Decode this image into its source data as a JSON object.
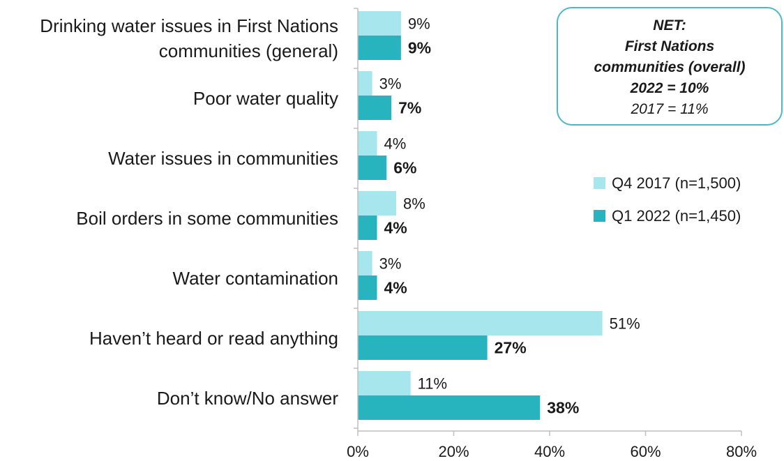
{
  "chart_data": {
    "type": "bar",
    "orientation": "horizontal",
    "categories": [
      "Drinking water issues in First Nations communities (general)",
      "Poor water quality",
      "Water issues in communities",
      "Boil orders in some communities",
      "Water contamination",
      "Haven’t heard or read anything",
      "Don’t know/No answer"
    ],
    "category_lines": [
      [
        "Drinking water issues in First Nations",
        "communities (general)"
      ],
      [
        "Poor water quality"
      ],
      [
        "Water issues in communities"
      ],
      [
        "Boil orders in some communities"
      ],
      [
        "Water contamination"
      ],
      [
        "Haven’t heard or read anything"
      ],
      [
        "Don’t know/No answer"
      ]
    ],
    "series": [
      {
        "name": "Q4 2017 (n=1,500)",
        "values": [
          9,
          3,
          4,
          8,
          3,
          51,
          11
        ],
        "labels": [
          "9%",
          "3%",
          "4%",
          "8%",
          "3%",
          "51%",
          "11%"
        ],
        "color": "#a6e6ec",
        "bold": false
      },
      {
        "name": "Q1 2022 (n=1,450)",
        "values": [
          9,
          7,
          6,
          4,
          4,
          27,
          38
        ],
        "labels": [
          "9%",
          "7%",
          "6%",
          "4%",
          "4%",
          "27%",
          "38%"
        ],
        "color": "#28b4bf",
        "bold": true
      }
    ],
    "xlim": [
      0,
      80
    ],
    "xticks": [
      0,
      20,
      40,
      60,
      80
    ],
    "xtick_labels": [
      "0%",
      "20%",
      "40%",
      "60%",
      "80%"
    ],
    "legend_position": "right",
    "grid": false,
    "title": "",
    "xlabel": "",
    "ylabel": ""
  },
  "net_box": {
    "line1": "NET:",
    "line2": "First Nations",
    "line3": "communities (overall)",
    "line4": "2022 = 10%",
    "line5": "2017 = 11%"
  }
}
